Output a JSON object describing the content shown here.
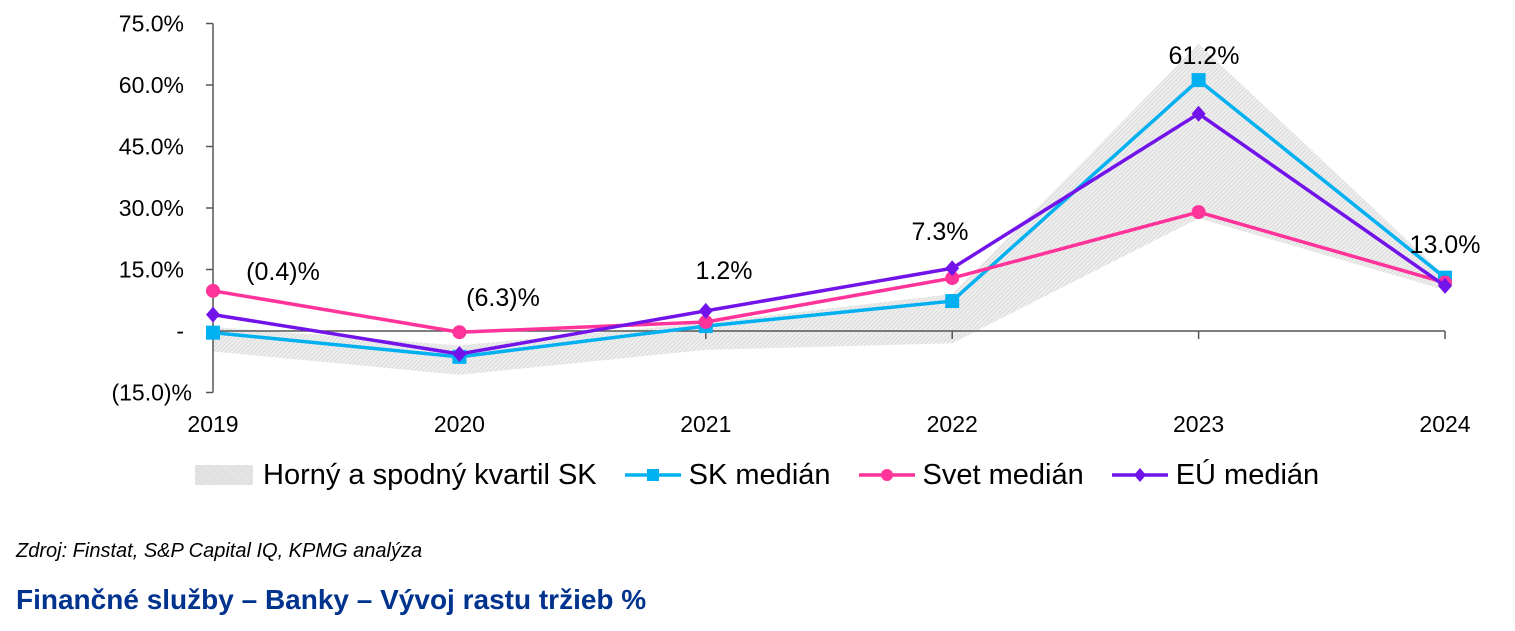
{
  "chart_data": {
    "type": "line",
    "title": "Finančné služby – Banky – Vývoj rastu tržieb %",
    "source": "Zdroj: Finstat, S&P Capital IQ, KPMG analýza",
    "xlabel": "",
    "ylabel": "",
    "categories": [
      "2019",
      "2020",
      "2021",
      "2022",
      "2023",
      "2024"
    ],
    "ylim": [
      -15,
      75
    ],
    "yticks": [
      {
        "value": 75,
        "label": "75.0%"
      },
      {
        "value": 60,
        "label": "60.0%"
      },
      {
        "value": 45,
        "label": "45.0%"
      },
      {
        "value": 30,
        "label": "30.0%"
      },
      {
        "value": 15,
        "label": "15.0%"
      },
      {
        "value": 0,
        "label": "-"
      },
      {
        "value": -15,
        "label": "(15.0)%"
      }
    ],
    "grid": false,
    "legend_position": "bottom",
    "band": {
      "name": "Horný a spodný kvartil SK",
      "upper": [
        1.0,
        -3.5,
        2.0,
        9.0,
        70.0,
        13.5
      ],
      "lower": [
        -5.0,
        -10.7,
        -4.6,
        -3.0,
        27.5,
        10.0
      ]
    },
    "series": [
      {
        "name": "SK medián",
        "color": "#00B0F0",
        "marker": "square",
        "values": [
          -0.4,
          -6.3,
          1.2,
          7.3,
          61.2,
          13.0
        ]
      },
      {
        "name": "Svet medián",
        "color": "#FF3399",
        "marker": "circle",
        "values": [
          9.8,
          -0.3,
          2.2,
          12.9,
          29.0,
          11.8
        ]
      },
      {
        "name": "EÚ medián",
        "color": "#7213EA",
        "marker": "diamond",
        "values": [
          4.0,
          -5.6,
          4.9,
          15.3,
          53.0,
          11.0
        ]
      }
    ],
    "annotations": [
      {
        "category": "2019",
        "text": "(0.4)%"
      },
      {
        "category": "2020",
        "text": "(6.3)%"
      },
      {
        "category": "2021",
        "text": "1.2%"
      },
      {
        "category": "2022",
        "text": "7.3%"
      },
      {
        "category": "2023",
        "text": "61.2%"
      },
      {
        "category": "2024",
        "text": "13.0%"
      }
    ]
  },
  "legend": {
    "band_label": "Horný a spodný kvartil SK",
    "sk_label": "SK medián",
    "svet_label": "Svet medián",
    "eu_label": "EÚ medián"
  },
  "footer": {
    "source": "Zdroj: Finstat, S&P Capital IQ, KPMG analýza",
    "title": "Finančné služby – Banky – Vývoj rastu tržieb %"
  }
}
